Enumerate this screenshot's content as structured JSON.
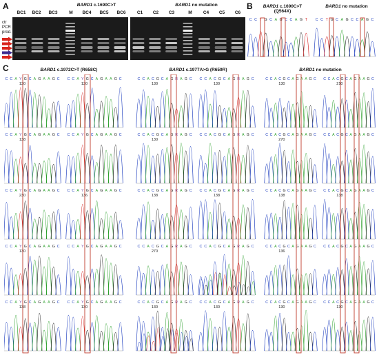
{
  "panels": {
    "a": {
      "letter": "A",
      "gel_left_title_gene": "BARD1",
      "gel_left_title_rest": " c.1690C>T",
      "gel_right_title_gene": "BARD1",
      "gel_right_title_rest": " no mutation",
      "lanes_left": [
        "BC1",
        "BC2",
        "BC3",
        "M",
        "BC4",
        "BC5",
        "BC6"
      ],
      "lanes_right": [
        "C1",
        "C2",
        "C3",
        "M",
        "C4",
        "C5",
        "C6"
      ],
      "side_labels": [
        "ctr",
        "PCR",
        "prod."
      ],
      "arrow_colors": [
        "#d8241c",
        "#d8241c",
        "#d8241c",
        "#3b2a8f",
        "#d8241c"
      ]
    },
    "b": {
      "letter": "B",
      "title_mut_gene": "BARD1",
      "title_mut_rest": " c.1690C>T",
      "title_mut_sub": "(Q564X)",
      "title_wt_gene": "BARD1",
      "title_wt_rest": " no mutation"
    },
    "c": {
      "letter": "C",
      "col1_gene": "BARD1",
      "col1_rest": " c.1972C>T (R658C)",
      "col2_gene": "BARD1",
      "col2_rest": " c.1977A>G (R659R)",
      "col3_gene": "BARD1",
      "col3_rest": " no mutation",
      "sequence": "CCAYGCAGAAGC",
      "sequence_wt": "CCACGCAGAAGC",
      "sequence_r659r": "CCACGCAGRAGC",
      "position_labels": [
        "130",
        "130",
        "130",
        "130",
        "130",
        "210",
        "138",
        "130",
        "270",
        "230",
        "136",
        "138",
        "138",
        "138",
        "138",
        "130",
        "270",
        "136",
        "138"
      ]
    }
  },
  "colors": {
    "A": "#2ca02c",
    "C": "#1f3fbf",
    "G": "#222222",
    "T": "#d62728",
    "highlight": "#c0392b",
    "gel_bg": "#1c1c1c"
  }
}
